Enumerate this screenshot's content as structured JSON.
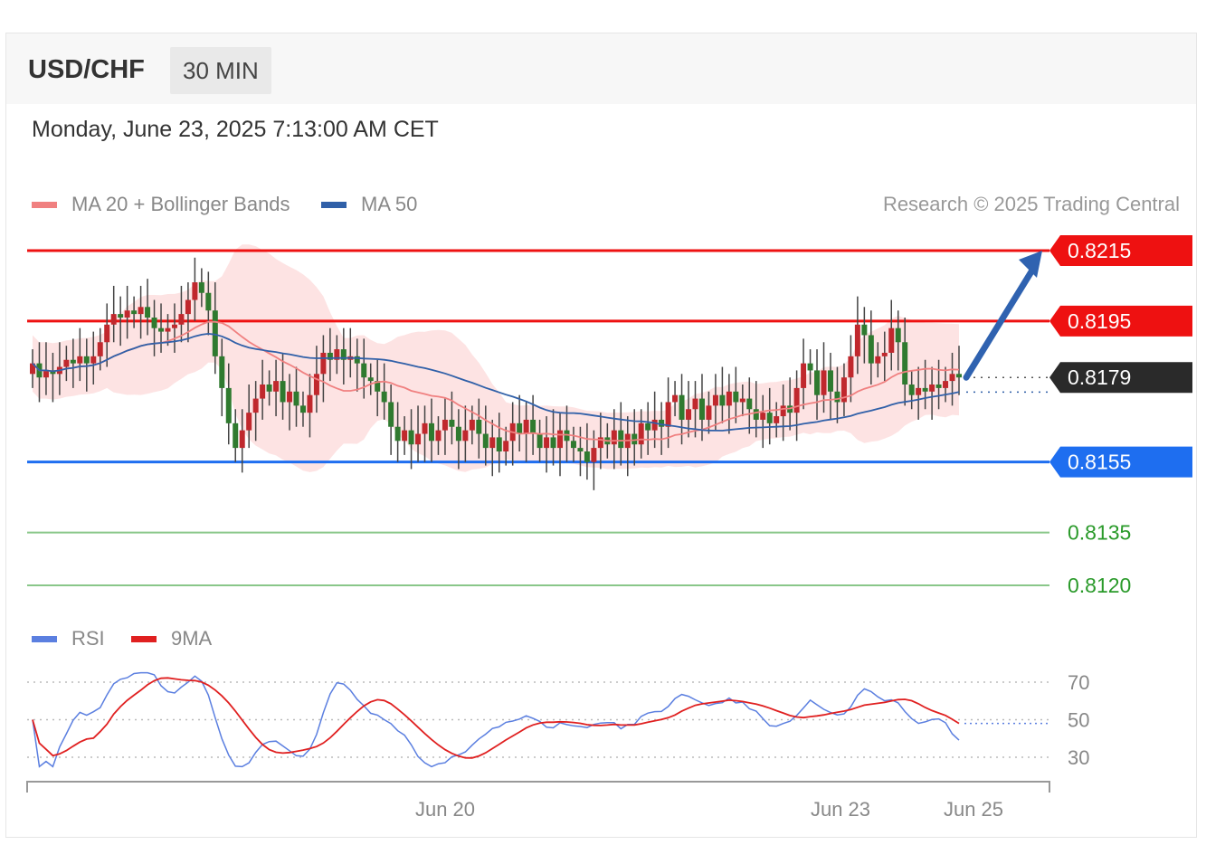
{
  "header": {
    "symbol": "USD/CHF",
    "timeframe": "30 MIN",
    "datetime": "Monday, June 23, 2025 7:13:00 AM CET",
    "credit": "Research © 2025 Trading Central"
  },
  "legend": [
    {
      "label": "MA 20 + Bollinger Bands",
      "color": "#f08080"
    },
    {
      "label": "MA 50",
      "color": "#3060a8"
    }
  ],
  "rsi_legend": [
    {
      "label": "RSI",
      "color": "#5b7fe0"
    },
    {
      "label": "9MA",
      "color": "#e02020"
    }
  ],
  "colors": {
    "resistance": "#ee1111",
    "current": "#2a2a2a",
    "support": "#1e6ef0",
    "support_minor": "#2a9a2a",
    "bull_candle": "#c0282d",
    "bear_candle": "#2f7a2f",
    "band_fill": "#fde0e0",
    "arrow": "#2f62b0"
  },
  "chart_data": [
    {
      "type": "candlestick",
      "ylim": [
        0.8112,
        0.8219
      ],
      "x_ticks": [
        "Jun 20",
        "Jun 23",
        "Jun 25"
      ],
      "levels": [
        {
          "label": "0.8215",
          "value": 0.8215,
          "kind": "resistance"
        },
        {
          "label": "0.8195",
          "value": 0.8195,
          "kind": "resistance"
        },
        {
          "label": "0.8179",
          "value": 0.8179,
          "kind": "current"
        },
        {
          "label": "0.8155",
          "value": 0.8155,
          "kind": "support"
        },
        {
          "label": "0.8135",
          "value": 0.8135,
          "kind": "support_minor"
        },
        {
          "label": "0.8120",
          "value": 0.812,
          "kind": "support_minor"
        }
      ],
      "arrow": {
        "from": 0.8179,
        "to": 0.8215
      },
      "close": [
        0.8183,
        0.8179,
        0.8181,
        0.818,
        0.8182,
        0.8184,
        0.8183,
        0.8185,
        0.8183,
        0.8185,
        0.8189,
        0.8194,
        0.8197,
        0.8196,
        0.8198,
        0.8197,
        0.8199,
        0.8196,
        0.8193,
        0.8192,
        0.8193,
        0.8194,
        0.8197,
        0.8201,
        0.8206,
        0.8203,
        0.8198,
        0.8185,
        0.8176,
        0.8166,
        0.8159,
        0.8164,
        0.8169,
        0.8173,
        0.8177,
        0.8175,
        0.8178,
        0.8172,
        0.8175,
        0.8171,
        0.8169,
        0.8174,
        0.818,
        0.8186,
        0.8184,
        0.8187,
        0.8184,
        0.8185,
        0.8183,
        0.8179,
        0.8178,
        0.8175,
        0.8172,
        0.8165,
        0.8161,
        0.8164,
        0.816,
        0.8163,
        0.8166,
        0.8161,
        0.8164,
        0.8167,
        0.8165,
        0.8161,
        0.8164,
        0.8167,
        0.8163,
        0.8159,
        0.8162,
        0.8158,
        0.8161,
        0.8166,
        0.8163,
        0.8167,
        0.8163,
        0.8159,
        0.8162,
        0.8159,
        0.8164,
        0.8161,
        0.8159,
        0.8158,
        0.8155,
        0.8159,
        0.8162,
        0.816,
        0.8164,
        0.8159,
        0.8163,
        0.816,
        0.8166,
        0.8164,
        0.8167,
        0.8165,
        0.8172,
        0.8174,
        0.8167,
        0.817,
        0.8173,
        0.8167,
        0.8171,
        0.8174,
        0.8171,
        0.8175,
        0.8172,
        0.8173,
        0.817,
        0.8167,
        0.8169,
        0.8166,
        0.8168,
        0.8171,
        0.8169,
        0.8176,
        0.8183,
        0.8181,
        0.8174,
        0.8181,
        0.8175,
        0.8172,
        0.8179,
        0.8185,
        0.8194,
        0.8191,
        0.8183,
        0.8185,
        0.8186,
        0.8193,
        0.8189,
        0.8177,
        0.8174,
        0.8176,
        0.8175,
        0.8177,
        0.8176,
        0.8178,
        0.818,
        0.8179
      ]
    },
    {
      "type": "line",
      "name": "RSI",
      "ylim": [
        20,
        80
      ],
      "y_ticks": [
        70,
        50,
        30
      ]
    }
  ]
}
